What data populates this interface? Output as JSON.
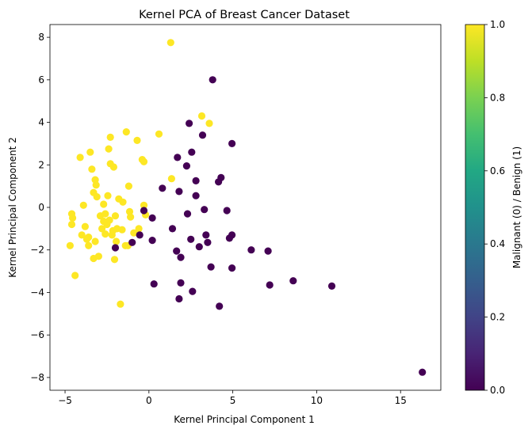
{
  "chart_data": {
    "type": "scatter",
    "title": "Kernel PCA of Breast Cancer Dataset",
    "xlabel": "Kernel Principal Component 1",
    "ylabel": "Kernel Principal Component 2",
    "xlim": [
      -5.9,
      17.4
    ],
    "ylim": [
      -8.6,
      8.6
    ],
    "xticks": [
      "−5",
      "0",
      "5",
      "10",
      "15"
    ],
    "yticks": [
      "−8",
      "−6",
      "−4",
      "−2",
      "0",
      "2",
      "4",
      "6",
      "8"
    ],
    "grid": false,
    "colorbar": {
      "label": "Malignant (0) / Benign (1)",
      "colormap": "viridis",
      "range": [
        0.0,
        1.0
      ],
      "ticks": [
        "0.0",
        "0.2",
        "0.4",
        "0.6",
        "0.8",
        "1.0"
      ]
    },
    "colors": {
      "0": "#440154",
      "1": "#fde725"
    },
    "points": [
      [
        1.3,
        7.75,
        1
      ],
      [
        -4.7,
        -1.8,
        1
      ],
      [
        -4.6,
        -0.8,
        1
      ],
      [
        -4.6,
        -0.3,
        1
      ],
      [
        -4.55,
        -0.5,
        1
      ],
      [
        -4.4,
        -3.2,
        1
      ],
      [
        -4.1,
        2.35,
        1
      ],
      [
        -3.9,
        0.1,
        1
      ],
      [
        -3.8,
        -0.9,
        1
      ],
      [
        -3.6,
        -1.8,
        1
      ],
      [
        -3.6,
        -1.4,
        1
      ],
      [
        -3.5,
        2.6,
        1
      ],
      [
        -3.4,
        1.8,
        1
      ],
      [
        -3.3,
        -2.4,
        1
      ],
      [
        -3.3,
        0.7,
        1
      ],
      [
        -3.2,
        1.3,
        1
      ],
      [
        -3.15,
        1.05,
        1
      ],
      [
        -3.1,
        0.5,
        1
      ],
      [
        -3.0,
        -2.3,
        1
      ],
      [
        -2.9,
        -0.4,
        1
      ],
      [
        -2.8,
        -1.0,
        1
      ],
      [
        -2.7,
        0.15,
        1
      ],
      [
        -2.6,
        -0.3,
        1
      ],
      [
        -2.5,
        -0.8,
        1
      ],
      [
        -2.45,
        0.55,
        1
      ],
      [
        -2.4,
        2.75,
        1
      ],
      [
        -2.3,
        3.3,
        1
      ],
      [
        -2.3,
        2.05,
        1
      ],
      [
        -2.2,
        -1.3,
        1
      ],
      [
        -2.1,
        1.9,
        1
      ],
      [
        -2.05,
        -2.45,
        1
      ],
      [
        -2.0,
        -0.4,
        1
      ],
      [
        -1.9,
        -1.0,
        1
      ],
      [
        -1.8,
        0.4,
        1
      ],
      [
        -1.7,
        -4.55,
        1
      ],
      [
        -1.55,
        0.25,
        1
      ],
      [
        -1.4,
        -1.8,
        1
      ],
      [
        -1.35,
        3.55,
        1
      ],
      [
        -1.2,
        1.0,
        1
      ],
      [
        -1.15,
        -0.2,
        1
      ],
      [
        -1.1,
        -0.45,
        1
      ],
      [
        -0.7,
        3.15,
        1
      ],
      [
        -0.6,
        -1.0,
        1
      ],
      [
        -0.4,
        2.25,
        1
      ],
      [
        -0.3,
        2.15,
        1
      ],
      [
        -0.3,
        0.1,
        1
      ],
      [
        -0.2,
        -0.35,
        1
      ],
      [
        0.6,
        3.45,
        1
      ],
      [
        1.35,
        1.35,
        1
      ],
      [
        3.15,
        4.3,
        1
      ],
      [
        3.6,
        3.95,
        1
      ],
      [
        -3.7,
        -1.5,
        1
      ],
      [
        -4.0,
        -1.3,
        1
      ],
      [
        -2.7,
        -0.65,
        1
      ],
      [
        -1.95,
        -1.6,
        1
      ],
      [
        -0.9,
        -1.2,
        1
      ],
      [
        -2.35,
        -0.6,
        1
      ],
      [
        -1.6,
        -1.05,
        1
      ],
      [
        -2.15,
        -1.1,
        1
      ],
      [
        -3.2,
        -1.6,
        1
      ],
      [
        -1.25,
        -1.8,
        1
      ],
      [
        -2.6,
        -1.25,
        1
      ],
      [
        -2.0,
        -1.9,
        0
      ],
      [
        -1.0,
        -1.65,
        0
      ],
      [
        -0.55,
        -1.3,
        0
      ],
      [
        -0.3,
        -0.15,
        0
      ],
      [
        0.2,
        -0.5,
        0
      ],
      [
        0.2,
        -1.55,
        0
      ],
      [
        0.3,
        -3.6,
        0
      ],
      [
        0.8,
        0.9,
        0
      ],
      [
        1.4,
        -1.0,
        0
      ],
      [
        1.65,
        -2.05,
        0
      ],
      [
        1.7,
        2.35,
        0
      ],
      [
        1.8,
        0.75,
        0
      ],
      [
        1.8,
        -4.3,
        0
      ],
      [
        1.9,
        -2.35,
        0
      ],
      [
        1.9,
        -3.55,
        0
      ],
      [
        2.25,
        1.95,
        0
      ],
      [
        2.3,
        -0.3,
        0
      ],
      [
        2.4,
        3.95,
        0
      ],
      [
        2.5,
        -1.5,
        0
      ],
      [
        2.55,
        2.6,
        0
      ],
      [
        2.6,
        -3.95,
        0
      ],
      [
        2.8,
        1.25,
        0
      ],
      [
        2.8,
        0.55,
        0
      ],
      [
        3.0,
        -1.85,
        0
      ],
      [
        3.2,
        3.4,
        0
      ],
      [
        3.3,
        -0.1,
        0
      ],
      [
        3.4,
        -1.3,
        0
      ],
      [
        3.5,
        -1.65,
        0
      ],
      [
        3.7,
        -2.8,
        0
      ],
      [
        3.8,
        6.0,
        0
      ],
      [
        4.15,
        1.2,
        0
      ],
      [
        4.2,
        -4.65,
        0
      ],
      [
        4.3,
        1.4,
        0
      ],
      [
        4.65,
        -0.15,
        0
      ],
      [
        4.8,
        -1.45,
        0
      ],
      [
        4.95,
        -1.3,
        0
      ],
      [
        4.95,
        3.0,
        0
      ],
      [
        4.95,
        -2.85,
        0
      ],
      [
        6.1,
        -2.0,
        0
      ],
      [
        7.1,
        -2.05,
        0
      ],
      [
        7.2,
        -3.65,
        0
      ],
      [
        8.6,
        -3.45,
        0
      ],
      [
        10.9,
        -3.7,
        0
      ],
      [
        16.3,
        -7.75,
        0
      ]
    ]
  }
}
